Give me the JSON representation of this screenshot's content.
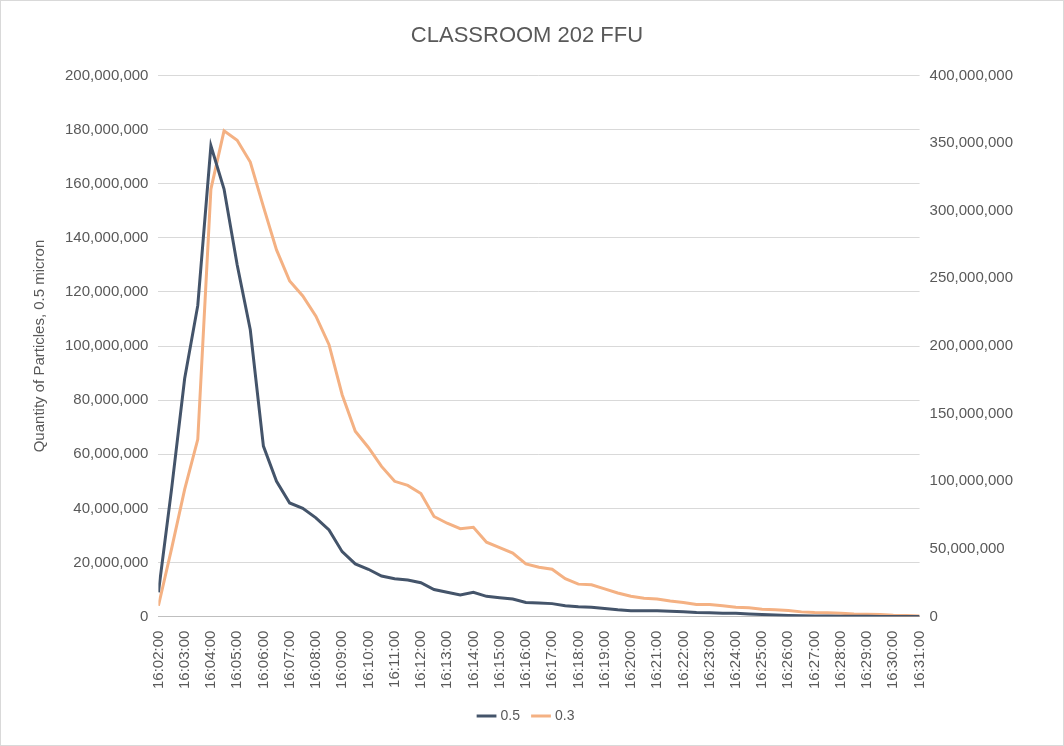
{
  "chart_data": {
    "type": "line",
    "title": "CLASSROOM 202 FFU",
    "y_label": "Quantity of Particles, 0.5 micron",
    "categories": [
      "16:02:00",
      null,
      "16:03:00",
      null,
      "16:04:00",
      null,
      "16:05:00",
      null,
      "16:06:00",
      null,
      "16:07:00",
      null,
      "16:08:00",
      null,
      "16:09:00",
      null,
      "16:10:00",
      null,
      "16:11:00",
      null,
      "16:12:00",
      null,
      "16:13:00",
      null,
      "16:14:00",
      null,
      "16:15:00",
      null,
      "16:16:00",
      null,
      "16:17:00",
      null,
      "16:18:00",
      null,
      "16:19:00",
      null,
      "16:20:00",
      null,
      "16:21:00",
      null,
      "16:22:00",
      null,
      "16:23:00",
      null,
      "16:24:00",
      null,
      "16:25:00",
      null,
      "16:26:00",
      null,
      "16:27:00",
      null,
      "16:28:00",
      null,
      "16:29:00",
      null,
      "16:30:00",
      null,
      "16:31:00"
    ],
    "series": [
      {
        "name": "0.5",
        "color": "#44546a",
        "values": [
          9000000,
          47000000,
          88000000,
          115000000,
          174000000,
          158000000,
          130000000,
          106000000,
          63000000,
          50000000,
          42000000,
          40000000,
          36500000,
          32000000,
          24000000,
          19500000,
          17500000,
          15000000,
          14000000,
          13500000,
          12500000,
          10000000,
          9000000,
          8000000,
          9000000,
          7500000,
          7000000,
          6500000,
          5200000,
          5000000,
          4800000,
          4000000,
          3600000,
          3500000,
          3000000,
          2500000,
          2200000,
          2200000,
          2200000,
          2000000,
          1800000,
          1500000,
          1400000,
          1200000,
          1200000,
          1000000,
          800000,
          600000,
          400000,
          300000,
          200000,
          200000,
          100000,
          100000,
          100000,
          50000,
          50000,
          0,
          0
        ]
      },
      {
        "name": "0.3",
        "color": "#f4b183",
        "axis": "y2",
        "values": [
          8000000,
          50000000,
          94000000,
          131000000,
          316000000,
          359000000,
          352000000,
          336000000,
          303000000,
          271000000,
          248000000,
          237000000,
          222000000,
          201000000,
          164000000,
          137000000,
          125000000,
          111000000,
          100000000,
          97000000,
          91000000,
          74000000,
          69000000,
          65000000,
          66000000,
          55000000,
          51000000,
          47000000,
          39000000,
          36500000,
          35000000,
          28000000,
          24000000,
          23500000,
          20500000,
          17500000,
          15000000,
          13500000,
          13000000,
          11500000,
          10500000,
          9000000,
          9000000,
          8000000,
          7000000,
          6500000,
          5500000,
          5000000,
          4500000,
          3500000,
          3000000,
          2800000,
          2500000,
          2000000,
          1800000,
          1500000,
          1000000,
          800000,
          500000
        ]
      }
    ],
    "ylim": [
      0,
      200000000
    ],
    "yticks": [
      0,
      {
        "value": 20000000,
        "label": "20,000,000"
      },
      {
        "value": 40000000,
        "label": "40,000,000"
      },
      {
        "value": 60000000,
        "label": "60,000,000"
      },
      {
        "value": 80000000,
        "label": "80,000,000"
      },
      {
        "value": 100000000,
        "label": "100,000,000"
      },
      {
        "value": 120000000,
        "label": "120,000,000"
      },
      {
        "value": 140000000,
        "label": "140,000,000"
      },
      {
        "value": 160000000,
        "label": "160,000,000"
      },
      {
        "value": 180000000,
        "label": "180,000,000"
      },
      {
        "value": 200000000,
        "label": "200,000,000"
      }
    ],
    "y2lim": [
      0,
      400000000
    ],
    "y2ticks": [
      0,
      {
        "value": 50000000,
        "label": "50,000,000"
      },
      {
        "value": 100000000,
        "label": "100,000,000"
      },
      {
        "value": 150000000,
        "label": "150,000,000"
      },
      {
        "value": 200000000,
        "label": "200,000,000"
      },
      {
        "value": 250000000,
        "label": "250,000,000"
      },
      {
        "value": 300000000,
        "label": "300,000,000"
      },
      {
        "value": 350000000,
        "label": "350,000,000"
      },
      {
        "value": 400000000,
        "label": "400,000,000"
      }
    ],
    "grid": true,
    "legend": "bottom"
  }
}
